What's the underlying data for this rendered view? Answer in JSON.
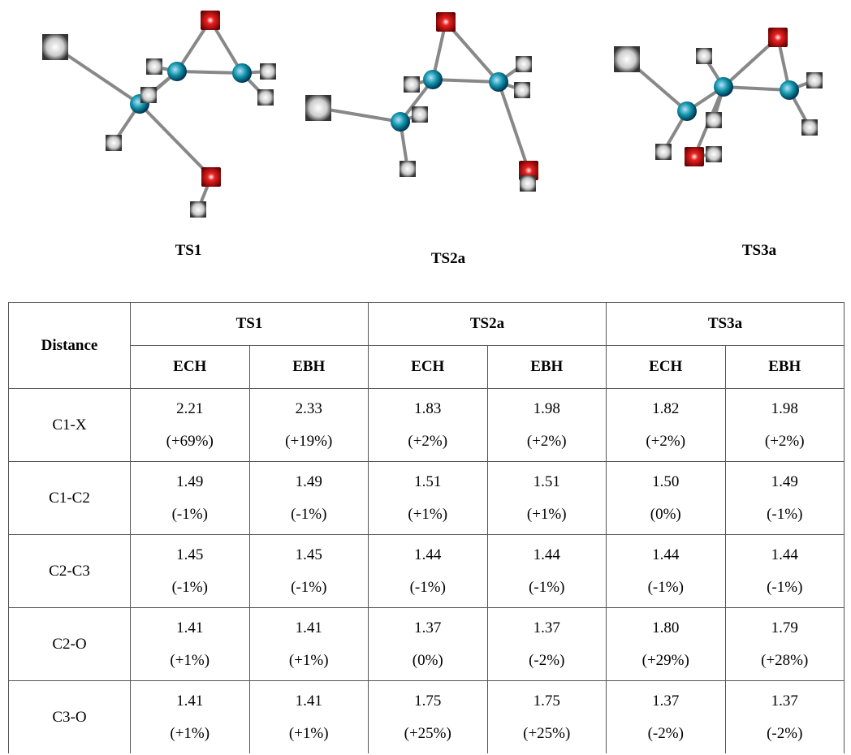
{
  "figure": {
    "molecules": [
      {
        "label": "TS1"
      },
      {
        "label": "TS2a"
      },
      {
        "label": "TS3a"
      }
    ]
  },
  "table": {
    "row_header": "Distance",
    "groups": [
      "TS1",
      "TS2a",
      "TS3a"
    ],
    "columns": [
      "ECH",
      "EBH",
      "ECH",
      "EBH",
      "ECH",
      "EBH"
    ],
    "rows": [
      {
        "label": "C1-X",
        "cells": [
          [
            "2.21",
            "(+69%)"
          ],
          [
            "2.33",
            "(+19%)"
          ],
          [
            "1.83",
            "(+2%)"
          ],
          [
            "1.98",
            "(+2%)"
          ],
          [
            "1.82",
            "(+2%)"
          ],
          [
            "1.98",
            "(+2%)"
          ]
        ]
      },
      {
        "label": "C1-C2",
        "cells": [
          [
            "1.49",
            "(-1%)"
          ],
          [
            "1.49",
            "(-1%)"
          ],
          [
            "1.51",
            "(+1%)"
          ],
          [
            "1.51",
            "(+1%)"
          ],
          [
            "1.50",
            "(0%)"
          ],
          [
            "1.49",
            "(-1%)"
          ]
        ]
      },
      {
        "label": "C2-C3",
        "cells": [
          [
            "1.45",
            "(-1%)"
          ],
          [
            "1.45",
            "(-1%)"
          ],
          [
            "1.44",
            "(-1%)"
          ],
          [
            "1.44",
            "(-1%)"
          ],
          [
            "1.44",
            "(-1%)"
          ],
          [
            "1.44",
            "(-1%)"
          ]
        ]
      },
      {
        "label": "C2-O",
        "cells": [
          [
            "1.41",
            "(+1%)"
          ],
          [
            "1.41",
            "(+1%)"
          ],
          [
            "1.37",
            "(0%)"
          ],
          [
            "1.37",
            "(-2%)"
          ],
          [
            "1.80",
            "(+29%)"
          ],
          [
            "1.79",
            "(+28%)"
          ]
        ]
      },
      {
        "label": "C3-O",
        "cells": [
          [
            "1.41",
            "(+1%)"
          ],
          [
            "1.41",
            "(+1%)"
          ],
          [
            "1.75",
            "(+25%)"
          ],
          [
            "1.75",
            "(+25%)"
          ],
          [
            "1.37",
            "(-2%)"
          ],
          [
            "1.37",
            "(-2%)"
          ]
        ]
      }
    ]
  }
}
